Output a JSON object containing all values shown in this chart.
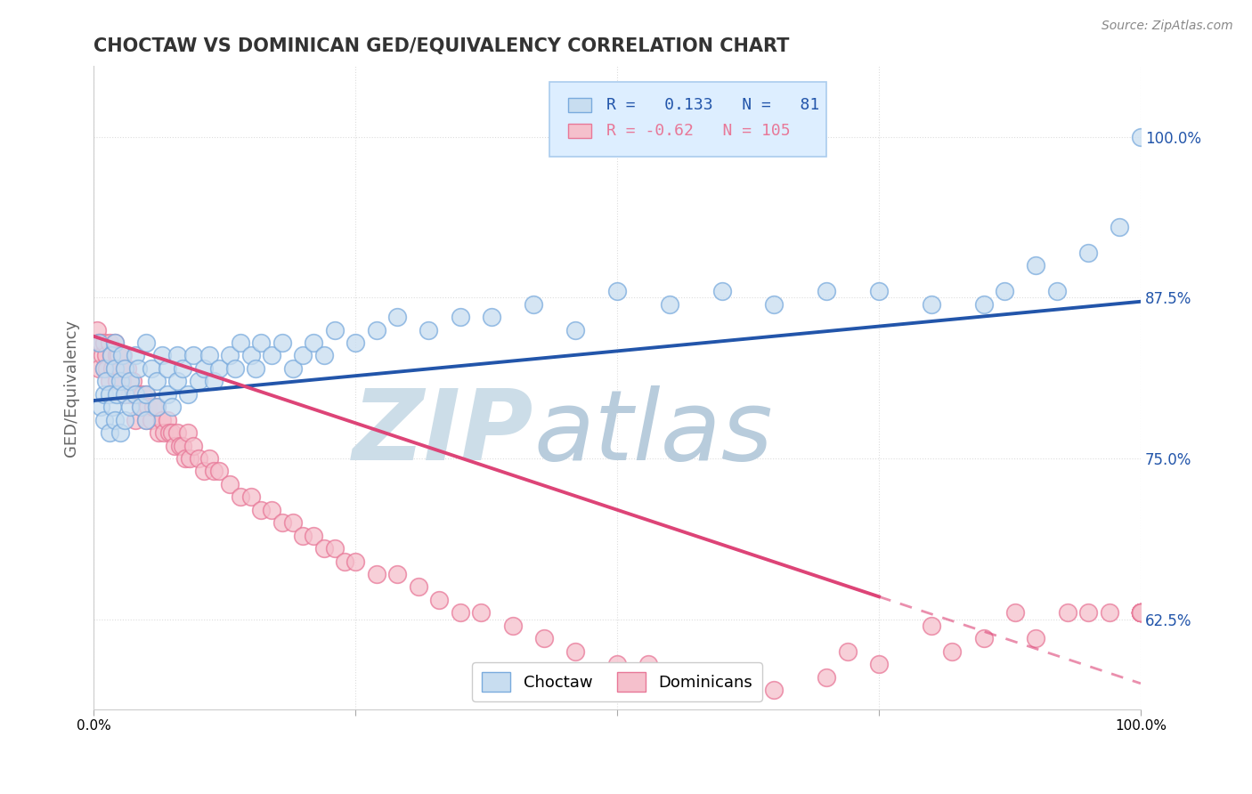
{
  "title": "CHOCTAW VS DOMINICAN GED/EQUIVALENCY CORRELATION CHART",
  "source": "Source: ZipAtlas.com",
  "ylabel": "GED/Equivalency",
  "ytick_labels": [
    "62.5%",
    "75.0%",
    "87.5%",
    "100.0%"
  ],
  "ytick_values": [
    0.625,
    0.75,
    0.875,
    1.0
  ],
  "xmin": 0.0,
  "xmax": 1.0,
  "ymin": 0.555,
  "ymax": 1.055,
  "choctaw_R": 0.133,
  "choctaw_N": 81,
  "dominican_R": -0.62,
  "dominican_N": 105,
  "choctaw_color": "#c8ddf0",
  "choctaw_edge": "#7aabdd",
  "dominican_color": "#f5c0cc",
  "dominican_edge": "#e87898",
  "choctaw_line_color": "#2255aa",
  "dominican_line_color": "#dd4477",
  "watermark_color": "#ccdde8",
  "legend_box_color": "#ddeeff",
  "legend_box_edge": "#aaccee",
  "background_color": "#ffffff",
  "grid_color": "#dddddd",
  "scatter_size": 200,
  "scatter_alpha": 0.75,
  "scatter_edge_width": 1.2,
  "choctaw_trend_x": [
    0.0,
    1.0
  ],
  "choctaw_trend_y": [
    0.795,
    0.872
  ],
  "dominican_trend_x": [
    0.0,
    1.0
  ],
  "dominican_trend_y": [
    0.845,
    0.575
  ],
  "dominican_trend_solid_end": 0.75,
  "choctaw_scatter_x": [
    0.005,
    0.007,
    0.01,
    0.01,
    0.01,
    0.012,
    0.015,
    0.015,
    0.017,
    0.018,
    0.02,
    0.02,
    0.02,
    0.022,
    0.025,
    0.025,
    0.027,
    0.03,
    0.03,
    0.03,
    0.035,
    0.035,
    0.04,
    0.04,
    0.042,
    0.045,
    0.05,
    0.05,
    0.05,
    0.055,
    0.06,
    0.06,
    0.065,
    0.07,
    0.07,
    0.075,
    0.08,
    0.08,
    0.085,
    0.09,
    0.095,
    0.1,
    0.105,
    0.11,
    0.115,
    0.12,
    0.13,
    0.135,
    0.14,
    0.15,
    0.155,
    0.16,
    0.17,
    0.18,
    0.19,
    0.2,
    0.21,
    0.22,
    0.23,
    0.25,
    0.27,
    0.29,
    0.32,
    0.35,
    0.38,
    0.42,
    0.46,
    0.5,
    0.55,
    0.6,
    0.65,
    0.7,
    0.75,
    0.8,
    0.85,
    0.87,
    0.9,
    0.92,
    0.95,
    0.98,
    1.0
  ],
  "choctaw_scatter_y": [
    0.84,
    0.79,
    0.82,
    0.78,
    0.8,
    0.81,
    0.8,
    0.77,
    0.83,
    0.79,
    0.82,
    0.78,
    0.84,
    0.8,
    0.81,
    0.77,
    0.83,
    0.8,
    0.78,
    0.82,
    0.81,
    0.79,
    0.83,
    0.8,
    0.82,
    0.79,
    0.84,
    0.8,
    0.78,
    0.82,
    0.81,
    0.79,
    0.83,
    0.8,
    0.82,
    0.79,
    0.83,
    0.81,
    0.82,
    0.8,
    0.83,
    0.81,
    0.82,
    0.83,
    0.81,
    0.82,
    0.83,
    0.82,
    0.84,
    0.83,
    0.82,
    0.84,
    0.83,
    0.84,
    0.82,
    0.83,
    0.84,
    0.83,
    0.85,
    0.84,
    0.85,
    0.86,
    0.85,
    0.86,
    0.86,
    0.87,
    0.85,
    0.88,
    0.87,
    0.88,
    0.87,
    0.88,
    0.88,
    0.87,
    0.87,
    0.88,
    0.9,
    0.88,
    0.91,
    0.93,
    1.0
  ],
  "dominican_scatter_x": [
    0.003,
    0.005,
    0.005,
    0.007,
    0.008,
    0.01,
    0.01,
    0.012,
    0.013,
    0.015,
    0.015,
    0.017,
    0.018,
    0.02,
    0.02,
    0.022,
    0.022,
    0.024,
    0.025,
    0.027,
    0.028,
    0.03,
    0.03,
    0.032,
    0.035,
    0.037,
    0.04,
    0.04,
    0.042,
    0.045,
    0.047,
    0.05,
    0.05,
    0.052,
    0.055,
    0.057,
    0.06,
    0.062,
    0.065,
    0.067,
    0.07,
    0.072,
    0.075,
    0.077,
    0.08,
    0.082,
    0.085,
    0.087,
    0.09,
    0.092,
    0.095,
    0.1,
    0.105,
    0.11,
    0.115,
    0.12,
    0.13,
    0.14,
    0.15,
    0.16,
    0.17,
    0.18,
    0.19,
    0.2,
    0.21,
    0.22,
    0.23,
    0.24,
    0.25,
    0.27,
    0.29,
    0.31,
    0.33,
    0.35,
    0.37,
    0.4,
    0.43,
    0.46,
    0.5,
    0.53,
    0.56,
    0.6,
    0.65,
    0.7,
    0.72,
    0.75,
    0.8,
    0.82,
    0.85,
    0.88,
    0.9,
    0.93,
    0.95,
    0.97,
    1.0,
    1.0,
    1.0,
    1.0,
    1.0,
    1.0,
    1.0,
    1.0,
    1.0,
    1.0,
    1.0
  ],
  "dominican_scatter_y": [
    0.85,
    0.84,
    0.82,
    0.84,
    0.83,
    0.84,
    0.82,
    0.83,
    0.82,
    0.84,
    0.81,
    0.83,
    0.82,
    0.84,
    0.82,
    0.83,
    0.81,
    0.83,
    0.82,
    0.81,
    0.83,
    0.82,
    0.8,
    0.82,
    0.8,
    0.81,
    0.8,
    0.78,
    0.8,
    0.79,
    0.8,
    0.8,
    0.78,
    0.79,
    0.78,
    0.79,
    0.79,
    0.77,
    0.78,
    0.77,
    0.78,
    0.77,
    0.77,
    0.76,
    0.77,
    0.76,
    0.76,
    0.75,
    0.77,
    0.75,
    0.76,
    0.75,
    0.74,
    0.75,
    0.74,
    0.74,
    0.73,
    0.72,
    0.72,
    0.71,
    0.71,
    0.7,
    0.7,
    0.69,
    0.69,
    0.68,
    0.68,
    0.67,
    0.67,
    0.66,
    0.66,
    0.65,
    0.64,
    0.63,
    0.63,
    0.62,
    0.61,
    0.6,
    0.59,
    0.59,
    0.58,
    0.58,
    0.57,
    0.58,
    0.6,
    0.59,
    0.62,
    0.6,
    0.61,
    0.63,
    0.61,
    0.63,
    0.63,
    0.63,
    0.63,
    0.63,
    0.63,
    0.63,
    0.63,
    0.63,
    0.63,
    0.63,
    0.63,
    0.63,
    0.63
  ]
}
